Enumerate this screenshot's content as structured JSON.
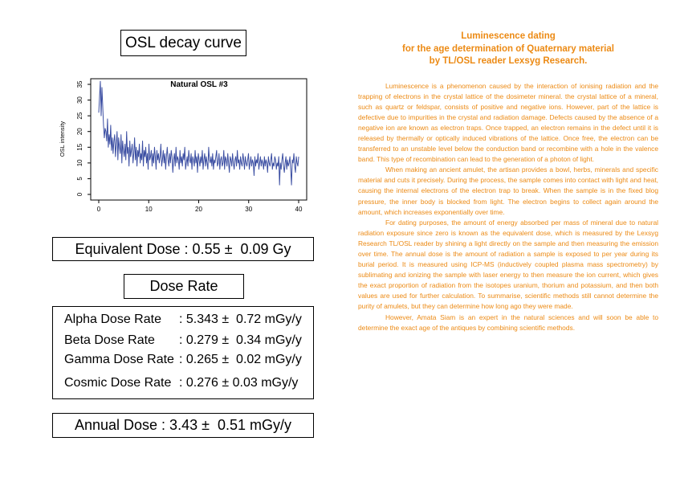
{
  "title": "OSL decay curve",
  "chart_data": {
    "type": "line",
    "title": "Natural OSL #3",
    "xlabel": "",
    "ylabel": "OSL intensity",
    "xlim": [
      0,
      40
    ],
    "ylim": [
      0,
      35
    ],
    "xticks": [
      0,
      10,
      20,
      30,
      40
    ],
    "yticks": [
      0,
      5,
      10,
      15,
      20,
      25,
      30,
      35
    ],
    "grid": false,
    "color": "#3b4ea2",
    "series": [
      {
        "values": [
          26,
          31,
          36,
          25,
          34,
          28,
          22,
          18,
          21,
          20,
          17,
          24,
          15,
          19,
          16,
          22,
          14,
          18,
          13,
          17,
          19,
          12,
          16,
          20,
          11,
          18,
          15,
          13,
          19,
          10,
          17,
          14,
          12,
          16,
          11,
          20,
          13,
          15,
          9,
          17,
          12,
          14,
          16,
          10,
          13,
          18,
          11,
          15,
          9,
          14,
          12,
          16,
          10,
          13,
          11,
          17,
          9,
          14,
          12,
          15,
          10,
          13,
          8,
          16,
          11,
          12,
          14,
          9,
          13,
          10,
          15,
          12,
          8,
          14,
          11,
          13,
          10,
          12,
          16,
          9,
          11,
          14,
          10,
          13,
          8,
          12,
          15,
          11,
          9,
          13,
          10,
          14,
          12,
          7,
          11,
          13,
          9,
          15,
          10,
          12,
          11,
          8,
          14,
          10,
          12,
          9,
          13,
          11,
          15,
          8,
          10,
          12,
          9,
          14,
          11,
          10,
          13,
          8,
          12,
          11,
          9,
          14,
          10,
          12,
          7,
          13,
          11,
          9,
          12,
          10,
          14,
          8,
          11,
          13,
          9,
          12,
          10,
          8,
          15,
          11,
          10,
          12,
          9,
          13,
          8,
          11,
          10,
          12,
          14,
          9,
          10,
          13,
          8,
          11,
          12,
          9,
          10,
          14,
          8,
          12,
          11,
          9,
          13,
          10,
          7,
          12,
          11,
          9,
          13,
          10,
          8,
          11,
          12,
          9,
          14,
          10,
          11,
          8,
          12,
          10,
          9,
          13,
          11,
          8,
          12,
          10,
          9,
          11,
          13,
          8,
          10,
          12,
          9,
          11,
          10,
          6,
          12,
          9,
          11,
          10,
          13,
          8,
          10,
          12,
          9,
          11,
          10,
          8,
          12,
          9,
          11,
          10,
          7,
          12,
          10,
          9,
          11,
          13,
          8,
          10,
          9,
          12,
          11,
          8,
          10,
          9,
          12,
          3,
          10,
          8,
          11,
          13,
          9,
          7,
          10,
          12,
          8,
          11,
          9,
          10,
          12,
          8,
          3,
          11,
          10,
          13,
          9,
          7,
          12,
          10,
          9,
          12
        ]
      }
    ]
  },
  "equivalent_dose": "Equivalent Dose : 0.55 ±  0.09 Gy",
  "dose_rate_title": "Dose Rate",
  "dose_rates": [
    {
      "label": "Alpha Dose Rate",
      "value": ": 5.343 ±  0.72 mGy/y"
    },
    {
      "label": "Beta Dose Rate",
      "value": ": 0.279 ±  0.34 mGy/y"
    },
    {
      "label": "Gamma Dose Rate",
      "value": ": 0.265 ±  0.02 mGy/y"
    },
    {
      "label": "Cosmic Dose Rate",
      "value": ": 0.276 ± 0.03 mGy/y"
    }
  ],
  "annual_dose": "Annual Dose : 3.43 ±  0.51 mGy/y",
  "right": {
    "title_lines": [
      "Luminescence dating",
      "for the age determination of Quaternary material",
      "by TL/OSL reader Lexsyg Research."
    ],
    "paragraphs": [
      "Luminescence is a phenomenon caused by the interaction of ionising radiation and the trapping of electrons in the crystal lattice of the dosimeter mineral. the crystal lattice of a mineral, such as quartz or feldspar, consists of positive and negative ions. However, part of the lattice is defective due to impurities in the crystal and radiation damage. Defects caused by the absence of a negative ion are known as electron traps. Once trapped, an electron remains in the defect until it is released by thermally or optically induced vibrations of the lattice. Once free, the electron can be transferred to an unstable level below the conduction band or recombine with a hole in the valence band. This type of recombination can lead to the generation of a photon of light.",
      "When making an ancient amulet, the artisan provides a bowl, herbs, minerals and specific material and cuts it precisely. During the process, the sample comes into contact with light and heat, causing the internal electrons of the electron trap to break. When the sample is in the fixed blog pressure, the inner body is blocked from light. The electron begins to collect again around the amount, which increases exponentially over time.",
      "For dating purposes, the amount of energy absorbed per mass of mineral due to natural radiation exposure since zero is known as the equivalent dose, which is measured by the Lexsyg Research TL/OSL reader by shining a light directly on the sample and then measuring the emission over time. The annual dose is the amount of radiation a sample is exposed to per year during its burial period. It is measured using ICP-MS (inductively coupled plasma mass spectrometry) by sublimating and ionizing the sample with laser energy to then measure the ion current, which gives the exact proportion of radiation from the isotopes uranium, thorium and potassium, and then both values are used for further calculation. To summarise, scientific methods still cannot determine the purity of amulets, but they can determine how long ago they were made.",
      "However, Amata Siam is an expert in the natural sciences and will soon be able to determine the exact age of the antiques by combining scientific methods."
    ]
  }
}
